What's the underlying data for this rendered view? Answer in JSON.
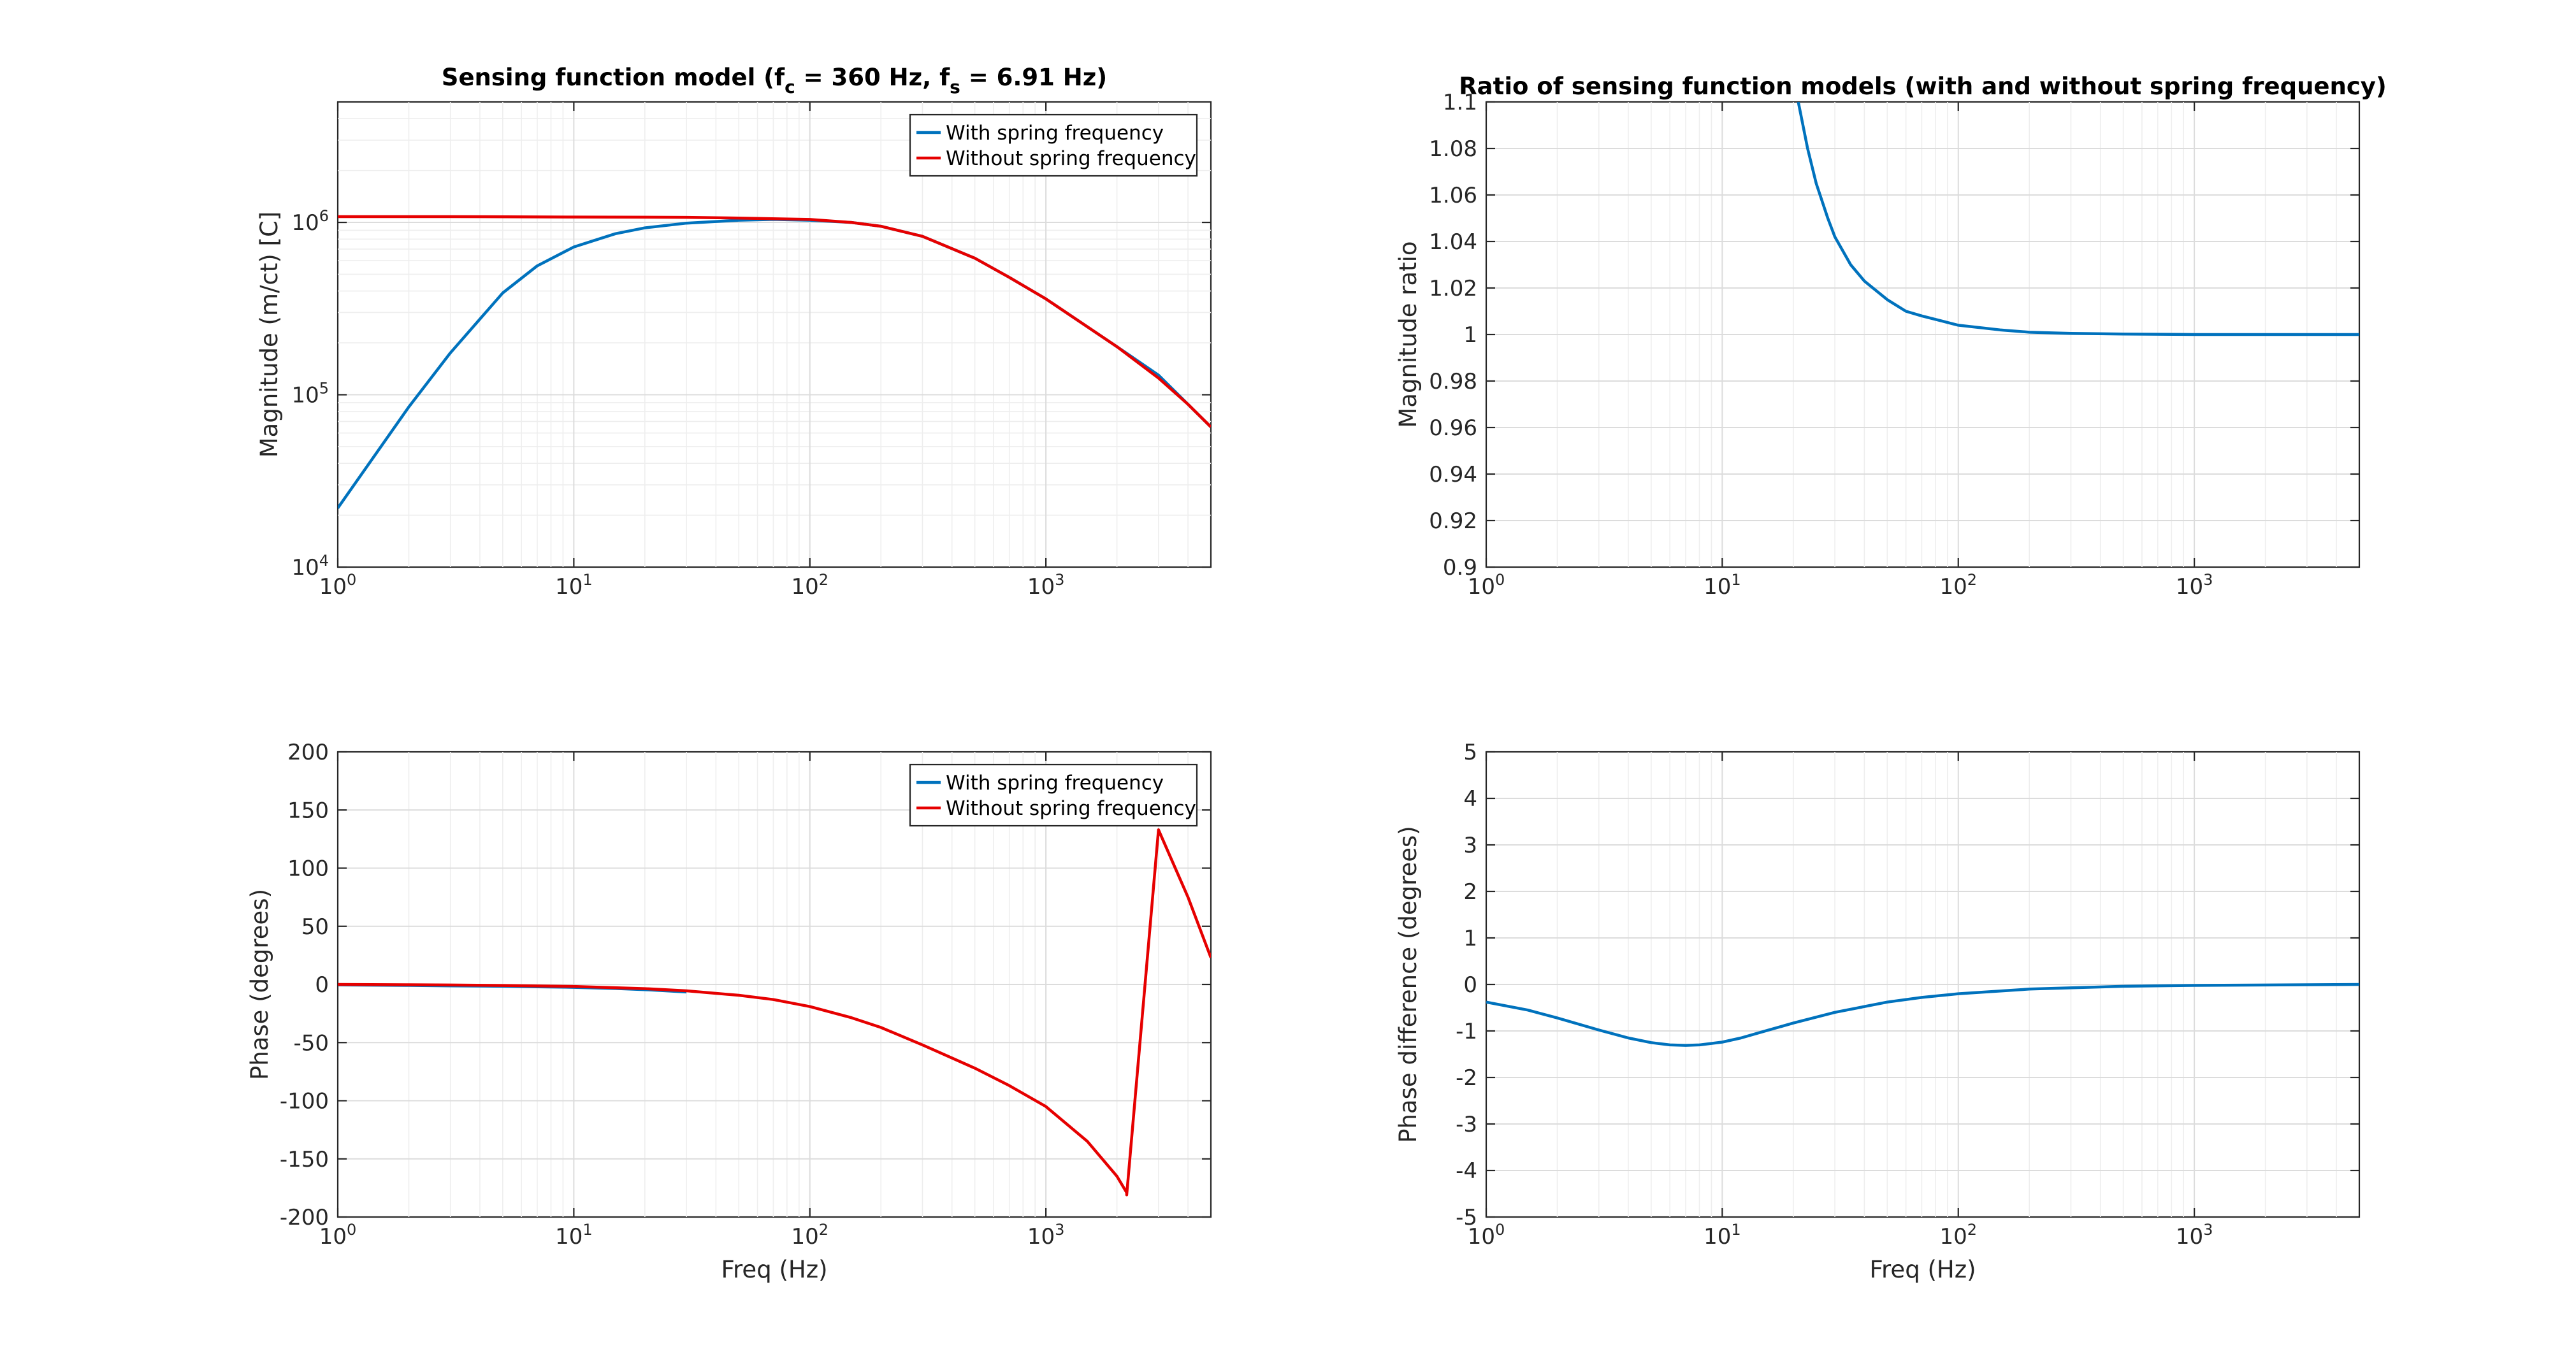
{
  "colors": {
    "with_spring": "#0072bd",
    "without_spring": "#e60000"
  },
  "chart_data": [
    {
      "id": "magnitude",
      "type": "line",
      "title_parts": [
        "Sensing function model (f",
        "c",
        " = 360 Hz, f",
        "s",
        " = 6.91 Hz)"
      ],
      "xlabel": "",
      "ylabel": "Magnitude (m/ct) [C]",
      "xscale": "log",
      "yscale": "log",
      "xlim": [
        1,
        5000
      ],
      "ylim": [
        10000,
        5000000
      ],
      "xticks": [
        1,
        10,
        100,
        1000
      ],
      "xtick_exponents": [
        "0",
        "1",
        "2",
        "3"
      ],
      "yticks": [
        10000,
        100000,
        1000000
      ],
      "ytick_exponents": [
        "4",
        "5",
        "6"
      ],
      "grid": true,
      "legend": {
        "placement": "top-right",
        "entries": [
          "With spring frequency",
          "Without spring frequency"
        ]
      },
      "series": [
        {
          "name": "With spring frequency",
          "color_key": "with_spring",
          "x": [
            1,
            2,
            3,
            5,
            7,
            10,
            15,
            20,
            30,
            50,
            70,
            100,
            150,
            200,
            300,
            500,
            700,
            1000,
            2000,
            3000,
            5000
          ],
          "y": [
            22000,
            85000,
            175000,
            390000,
            560000,
            720000,
            860000,
            930000,
            990000,
            1030000,
            1040000,
            1030000,
            1000000,
            950000,
            830000,
            620000,
            480000,
            360000,
            190000,
            130000,
            65000
          ]
        },
        {
          "name": "Without spring frequency",
          "color_key": "without_spring",
          "x": [
            1,
            3,
            10,
            30,
            50,
            100,
            150,
            200,
            300,
            500,
            700,
            1000,
            2000,
            3000,
            4000,
            5000
          ],
          "y": [
            1080000,
            1080000,
            1075000,
            1070000,
            1060000,
            1040000,
            1000000,
            950000,
            830000,
            620000,
            480000,
            360000,
            190000,
            125000,
            88000,
            65000
          ]
        }
      ]
    },
    {
      "id": "magnitude-ratio",
      "type": "line",
      "title": "Ratio of sensing function models (with and without spring frequency)",
      "xlabel": "",
      "ylabel": "Magnitude ratio",
      "xscale": "log",
      "yscale": "linear",
      "xlim": [
        1,
        5000
      ],
      "ylim": [
        0.9,
        1.1
      ],
      "xticks": [
        1,
        10,
        100,
        1000
      ],
      "xtick_exponents": [
        "0",
        "1",
        "2",
        "3"
      ],
      "yticks": [
        0.9,
        0.92,
        0.94,
        0.96,
        0.98,
        1,
        1.02,
        1.04,
        1.06,
        1.08,
        1.1
      ],
      "ytick_labels": [
        "0.9",
        "0.92",
        "0.94",
        "0.96",
        "0.98",
        "1",
        "1.02",
        "1.04",
        "1.06",
        "1.08",
        "1.1"
      ],
      "grid": true,
      "series": [
        {
          "name": "",
          "color_key": "with_spring",
          "x": [
            21,
            23,
            25,
            28,
            30,
            35,
            40,
            50,
            60,
            70,
            100,
            150,
            200,
            300,
            500,
            1000,
            2000,
            5000
          ],
          "y": [
            1.1,
            1.08,
            1.065,
            1.05,
            1.042,
            1.03,
            1.023,
            1.015,
            1.01,
            1.008,
            1.004,
            1.002,
            1.001,
            1.0005,
            1.0002,
            1.0,
            1.0,
            1.0
          ]
        }
      ]
    },
    {
      "id": "phase",
      "type": "line",
      "title": "",
      "xlabel": "Freq (Hz)",
      "ylabel": "Phase (degrees)",
      "xscale": "log",
      "yscale": "linear",
      "xlim": [
        1,
        5000
      ],
      "ylim": [
        -200,
        200
      ],
      "xticks": [
        1,
        10,
        100,
        1000
      ],
      "xtick_exponents": [
        "0",
        "1",
        "2",
        "3"
      ],
      "yticks": [
        -200,
        -150,
        -100,
        -50,
        0,
        50,
        100,
        150,
        200
      ],
      "ytick_labels": [
        "-200",
        "-150",
        "-100",
        "-50",
        "0",
        "50",
        "100",
        "150",
        "200"
      ],
      "grid": true,
      "legend": {
        "placement": "top-right",
        "entries": [
          "With spring frequency",
          "Without spring frequency"
        ]
      },
      "series": [
        {
          "name": "With spring frequency",
          "color_key": "with_spring",
          "x": [
            1,
            2,
            3,
            5,
            7,
            10,
            15,
            20,
            30
          ],
          "y": [
            -0.4,
            -0.8,
            -1.2,
            -1.6,
            -2.0,
            -2.5,
            -3.5,
            -4.5,
            -6.5
          ]
        },
        {
          "name": "Without spring frequency",
          "color_key": "without_spring",
          "x": [
            1,
            2,
            3,
            5,
            10,
            20,
            30,
            50,
            70,
            100,
            150,
            200,
            300,
            500,
            700,
            1000,
            1500,
            2000,
            2200,
            2200,
            3000,
            4000,
            5000
          ],
          "y": [
            0,
            -0.3,
            -0.5,
            -0.9,
            -1.7,
            -3.6,
            -5.5,
            -9.3,
            -13,
            -19,
            -28.6,
            -37,
            -52,
            -72,
            -87,
            -105,
            -135,
            -165,
            -179,
            -181,
            133,
            75,
            23
          ]
        }
      ]
    },
    {
      "id": "phase-difference",
      "type": "line",
      "title": "",
      "xlabel": "Freq (Hz)",
      "ylabel": "Phase difference (degrees)",
      "xscale": "log",
      "yscale": "linear",
      "xlim": [
        1,
        5000
      ],
      "ylim": [
        -5,
        5
      ],
      "xticks": [
        1,
        10,
        100,
        1000
      ],
      "xtick_exponents": [
        "0",
        "1",
        "2",
        "3"
      ],
      "yticks": [
        -5,
        -4,
        -3,
        -2,
        -1,
        0,
        1,
        2,
        3,
        4,
        5
      ],
      "ytick_labels": [
        "-5",
        "-4",
        "-3",
        "-2",
        "-1",
        "0",
        "1",
        "2",
        "3",
        "4",
        "5"
      ],
      "grid": true,
      "series": [
        {
          "name": "",
          "color_key": "with_spring",
          "x": [
            1,
            1.5,
            2,
            3,
            4,
            5,
            6,
            7,
            8,
            10,
            12,
            15,
            20,
            30,
            50,
            70,
            100,
            200,
            500,
            1000,
            5000
          ],
          "y": [
            -0.38,
            -0.55,
            -0.72,
            -0.98,
            -1.15,
            -1.25,
            -1.3,
            -1.31,
            -1.3,
            -1.24,
            -1.15,
            -1.01,
            -0.83,
            -0.6,
            -0.38,
            -0.28,
            -0.2,
            -0.1,
            -0.04,
            -0.02,
            0
          ]
        }
      ]
    }
  ]
}
